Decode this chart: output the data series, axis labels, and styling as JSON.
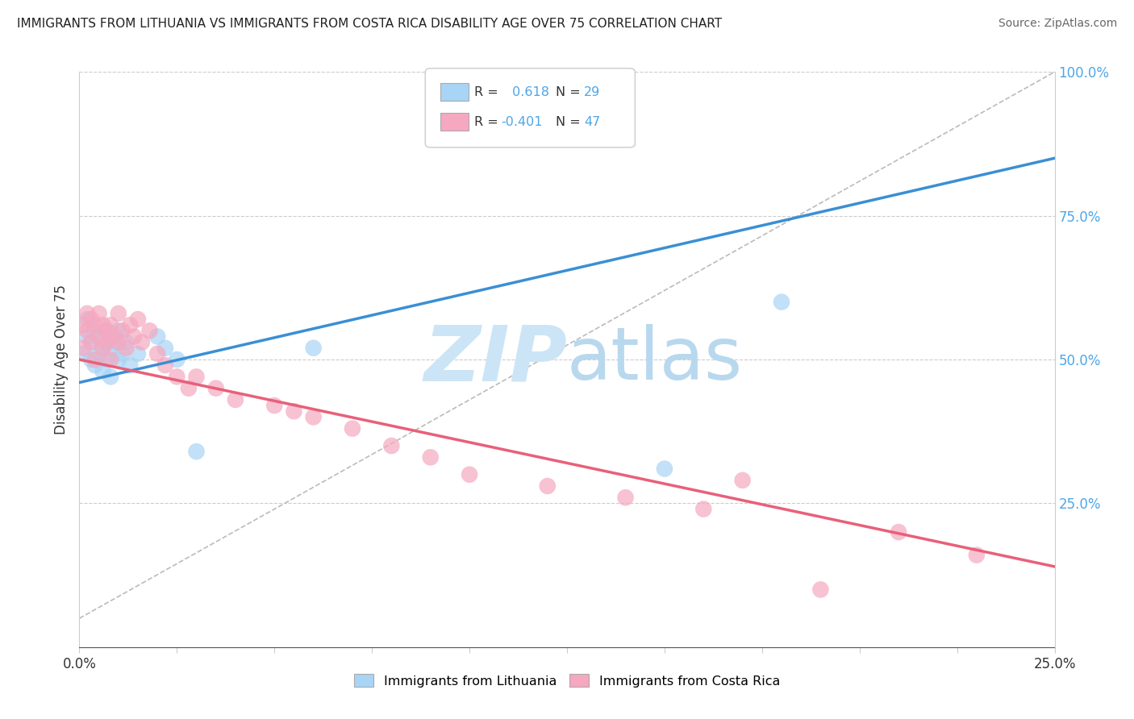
{
  "title": "IMMIGRANTS FROM LITHUANIA VS IMMIGRANTS FROM COSTA RICA DISABILITY AGE OVER 75 CORRELATION CHART",
  "source": "Source: ZipAtlas.com",
  "ylabel": "Disability Age Over 75",
  "legend_label1": "Immigrants from Lithuania",
  "legend_label2": "Immigrants from Costa Rica",
  "R1": 0.618,
  "N1": 29,
  "R2": -0.401,
  "N2": 47,
  "color_lithuania": "#a8d4f5",
  "color_costa_rica": "#f5a8c0",
  "color_line_lithuania": "#3a8fd4",
  "color_line_costa_rica": "#e8607a",
  "color_dashed": "#bbbbbb",
  "background_color": "#ffffff",
  "watermark_color": "#cce5f6",
  "xmin": 0.0,
  "xmax": 0.25,
  "ymin": 0.0,
  "ymax": 1.0,
  "lithuania_x": [
    0.001,
    0.002,
    0.002,
    0.003,
    0.003,
    0.004,
    0.004,
    0.005,
    0.005,
    0.006,
    0.006,
    0.007,
    0.007,
    0.008,
    0.008,
    0.009,
    0.01,
    0.01,
    0.011,
    0.012,
    0.013,
    0.015,
    0.02,
    0.022,
    0.025,
    0.03,
    0.06,
    0.15,
    0.18
  ],
  "lithuania_y": [
    0.51,
    0.54,
    0.57,
    0.5,
    0.53,
    0.49,
    0.55,
    0.51,
    0.54,
    0.48,
    0.52,
    0.5,
    0.55,
    0.47,
    0.52,
    0.53,
    0.5,
    0.55,
    0.51,
    0.53,
    0.49,
    0.51,
    0.54,
    0.52,
    0.5,
    0.34,
    0.52,
    0.31,
    0.6
  ],
  "costa_rica_x": [
    0.001,
    0.001,
    0.002,
    0.002,
    0.003,
    0.003,
    0.004,
    0.004,
    0.005,
    0.005,
    0.006,
    0.006,
    0.007,
    0.007,
    0.008,
    0.008,
    0.009,
    0.01,
    0.01,
    0.011,
    0.012,
    0.013,
    0.014,
    0.015,
    0.016,
    0.018,
    0.02,
    0.022,
    0.025,
    0.028,
    0.03,
    0.035,
    0.04,
    0.05,
    0.055,
    0.06,
    0.07,
    0.08,
    0.09,
    0.1,
    0.12,
    0.14,
    0.16,
    0.17,
    0.19,
    0.21,
    0.23
  ],
  "costa_rica_y": [
    0.52,
    0.56,
    0.55,
    0.58,
    0.53,
    0.57,
    0.5,
    0.56,
    0.54,
    0.58,
    0.52,
    0.56,
    0.55,
    0.53,
    0.56,
    0.5,
    0.54,
    0.53,
    0.58,
    0.55,
    0.52,
    0.56,
    0.54,
    0.57,
    0.53,
    0.55,
    0.51,
    0.49,
    0.47,
    0.45,
    0.47,
    0.45,
    0.43,
    0.42,
    0.41,
    0.4,
    0.38,
    0.35,
    0.33,
    0.3,
    0.28,
    0.26,
    0.24,
    0.29,
    0.1,
    0.2,
    0.16
  ],
  "lith_trend_x0": 0.0,
  "lith_trend_y0": 0.46,
  "lith_trend_x1": 0.25,
  "lith_trend_y1": 0.85,
  "costa_trend_x0": 0.0,
  "costa_trend_y0": 0.5,
  "costa_trend_x1": 0.25,
  "costa_trend_y1": 0.14
}
